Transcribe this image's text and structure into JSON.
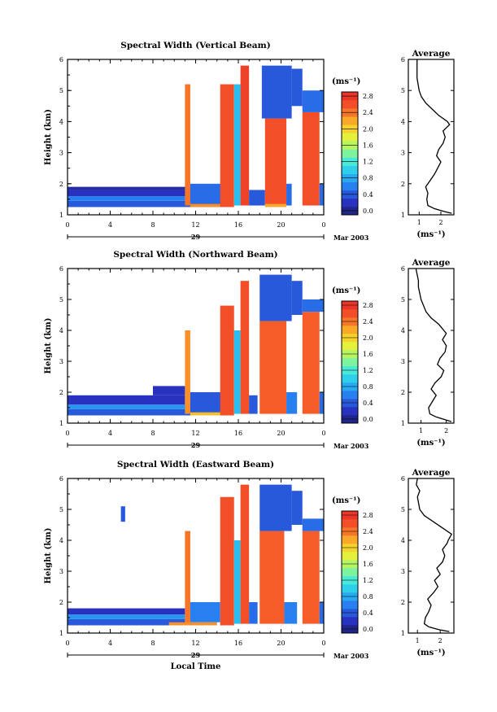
{
  "chart_data": [
    {
      "type": "heatmap",
      "title": "Spectral Width (Vertical Beam)",
      "ylabel": "Height (km)",
      "xlabel": "",
      "ylim": [
        1,
        6
      ],
      "xlim": [
        0,
        24
      ],
      "y_ticks": [
        "1",
        "2",
        "3",
        "4",
        "5",
        "6"
      ],
      "x_ticks": [
        "0",
        "4",
        "8",
        "12",
        "16",
        "20",
        "0"
      ],
      "date_day": "29",
      "date_month": "Mar 2003",
      "colorbar": {
        "label": "(ms⁻¹)",
        "ticks": [
          "0.0",
          "0.4",
          "0.8",
          "1.2",
          "1.6",
          "2.0",
          "2.4",
          "2.8"
        ],
        "range": [
          0,
          3.0
        ]
      },
      "cells": [
        {
          "t0": 0.0,
          "t1": 11.5,
          "h0": 1.25,
          "h1": 1.45,
          "v": 0.5
        },
        {
          "t0": 0.0,
          "t1": 11.5,
          "h0": 1.45,
          "h1": 1.6,
          "v": 0.7
        },
        {
          "t0": 0.0,
          "t1": 11.5,
          "h0": 1.6,
          "h1": 1.8,
          "v": 0.3
        },
        {
          "t0": 0.0,
          "t1": 11.5,
          "h0": 1.8,
          "h1": 1.9,
          "v": 0.2
        },
        {
          "t0": 11.0,
          "t1": 11.5,
          "h0": 1.3,
          "h1": 5.2,
          "v": 2.5
        },
        {
          "t0": 11.5,
          "t1": 14.5,
          "h0": 1.25,
          "h1": 2.0,
          "v": 0.6
        },
        {
          "t0": 11.5,
          "t1": 14.5,
          "h0": 1.25,
          "h1": 1.35,
          "v": 2.4
        },
        {
          "t0": 14.3,
          "t1": 15.6,
          "h0": 1.25,
          "h1": 5.2,
          "v": 2.7
        },
        {
          "t0": 15.6,
          "t1": 16.2,
          "h0": 1.3,
          "h1": 5.2,
          "v": 1.0
        },
        {
          "t0": 16.2,
          "t1": 17.0,
          "h0": 1.3,
          "h1": 5.8,
          "v": 2.8
        },
        {
          "t0": 17.0,
          "t1": 18.5,
          "h0": 1.3,
          "h1": 1.8,
          "v": 0.5
        },
        {
          "t0": 18.5,
          "t1": 20.5,
          "h0": 1.3,
          "h1": 4.1,
          "v": 2.7
        },
        {
          "t0": 18.5,
          "t1": 20.5,
          "h0": 1.25,
          "h1": 1.35,
          "v": 2.3
        },
        {
          "t0": 18.2,
          "t1": 21.0,
          "h0": 4.1,
          "h1": 5.8,
          "v": 0.5
        },
        {
          "t0": 20.5,
          "t1": 21.0,
          "h0": 1.3,
          "h1": 2.0,
          "v": 0.6
        },
        {
          "t0": 21.0,
          "t1": 22.0,
          "h0": 4.5,
          "h1": 5.7,
          "v": 0.5
        },
        {
          "t0": 22.0,
          "t1": 23.6,
          "h0": 1.3,
          "h1": 4.3,
          "v": 2.7
        },
        {
          "t0": 22.0,
          "t1": 24.0,
          "h0": 4.3,
          "h1": 5.0,
          "v": 0.6
        },
        {
          "t0": 23.6,
          "t1": 24.0,
          "h0": 1.3,
          "h1": 2.0,
          "v": 0.6
        }
      ],
      "average": {
        "title": "Average",
        "xlabel": "(ms⁻¹)",
        "x_ticks": [
          "1",
          "2"
        ],
        "xlim": [
          0.5,
          2.6
        ],
        "ylim": [
          1,
          6
        ],
        "y_ticks": [
          "1",
          "2",
          "3",
          "4",
          "5",
          "6"
        ],
        "height": [
          1.05,
          1.1,
          1.2,
          1.3,
          1.5,
          1.7,
          1.9,
          2.1,
          2.3,
          2.5,
          2.7,
          2.9,
          3.1,
          3.3,
          3.5,
          3.7,
          3.9,
          4.0,
          4.2,
          4.4,
          4.6,
          4.8,
          5.0,
          5.2,
          5.4,
          5.6,
          5.8,
          6.0
        ],
        "values": [
          2.5,
          2.2,
          1.7,
          1.4,
          1.35,
          1.4,
          1.3,
          1.5,
          1.7,
          1.85,
          2.0,
          1.8,
          1.9,
          2.1,
          2.2,
          2.1,
          2.4,
          2.3,
          1.9,
          1.6,
          1.3,
          1.1,
          1.0,
          0.95,
          0.9,
          0.9,
          0.9,
          0.9
        ]
      }
    },
    {
      "type": "heatmap",
      "title": "Spectral Width (Northward Beam)",
      "ylabel": "Height (km)",
      "xlabel": "",
      "ylim": [
        1,
        6
      ],
      "xlim": [
        0,
        24
      ],
      "y_ticks": [
        "1",
        "2",
        "3",
        "4",
        "5",
        "6"
      ],
      "x_ticks": [
        "0",
        "4",
        "8",
        "12",
        "16",
        "20",
        "0"
      ],
      "date_day": "29",
      "date_month": "Mar 2003",
      "colorbar": {
        "label": "(ms⁻¹)",
        "ticks": [
          "0.0",
          "0.4",
          "0.8",
          "1.2",
          "1.6",
          "2.0",
          "2.4",
          "2.8"
        ],
        "range": [
          0,
          3.0
        ]
      },
      "cells": [
        {
          "t0": 0.0,
          "t1": 11.5,
          "h0": 1.25,
          "h1": 1.45,
          "v": 0.5
        },
        {
          "t0": 0.0,
          "t1": 11.5,
          "h0": 1.45,
          "h1": 1.6,
          "v": 0.8
        },
        {
          "t0": 0.0,
          "t1": 11.0,
          "h0": 1.6,
          "h1": 1.9,
          "v": 0.3
        },
        {
          "t0": 8.0,
          "t1": 11.0,
          "h0": 1.9,
          "h1": 2.2,
          "v": 0.3
        },
        {
          "t0": 11.0,
          "t1": 11.5,
          "h0": 1.3,
          "h1": 4.0,
          "v": 2.4
        },
        {
          "t0": 11.5,
          "t1": 14.5,
          "h0": 1.3,
          "h1": 2.0,
          "v": 0.5
        },
        {
          "t0": 11.5,
          "t1": 14.5,
          "h0": 1.25,
          "h1": 1.35,
          "v": 2.2
        },
        {
          "t0": 14.3,
          "t1": 15.6,
          "h0": 1.25,
          "h1": 4.8,
          "v": 2.7
        },
        {
          "t0": 15.6,
          "t1": 16.2,
          "h0": 1.3,
          "h1": 4.0,
          "v": 1.0
        },
        {
          "t0": 16.2,
          "t1": 17.0,
          "h0": 1.3,
          "h1": 5.6,
          "v": 2.7
        },
        {
          "t0": 17.0,
          "t1": 17.8,
          "h0": 1.3,
          "h1": 1.9,
          "v": 0.5
        },
        {
          "t0": 18.0,
          "t1": 20.5,
          "h0": 1.3,
          "h1": 4.3,
          "v": 2.6
        },
        {
          "t0": 18.0,
          "t1": 21.0,
          "h0": 4.3,
          "h1": 5.8,
          "v": 0.5
        },
        {
          "t0": 20.5,
          "t1": 21.5,
          "h0": 1.3,
          "h1": 2.0,
          "v": 0.7
        },
        {
          "t0": 21.0,
          "t1": 22.0,
          "h0": 4.5,
          "h1": 5.6,
          "v": 0.5
        },
        {
          "t0": 22.0,
          "t1": 23.6,
          "h0": 1.3,
          "h1": 4.6,
          "v": 2.6
        },
        {
          "t0": 22.0,
          "t1": 24.0,
          "h0": 4.6,
          "h1": 5.0,
          "v": 0.6
        },
        {
          "t0": 23.6,
          "t1": 24.0,
          "h0": 1.3,
          "h1": 2.0,
          "v": 0.6
        }
      ],
      "average": {
        "title": "Average",
        "xlabel": "(ms⁻¹)",
        "x_ticks": [
          "1",
          "2"
        ],
        "xlim": [
          0.5,
          2.3
        ],
        "ylim": [
          1,
          6
        ],
        "y_ticks": [
          "1",
          "2",
          "3",
          "4",
          "5",
          "6"
        ],
        "height": [
          1.05,
          1.1,
          1.2,
          1.3,
          1.5,
          1.7,
          1.9,
          2.1,
          2.3,
          2.5,
          2.7,
          2.9,
          3.1,
          3.3,
          3.5,
          3.7,
          3.9,
          4.0,
          4.2,
          4.4,
          4.6,
          4.8,
          5.0,
          5.2,
          5.4,
          5.6,
          5.8,
          6.0
        ],
        "values": [
          2.2,
          2.0,
          1.6,
          1.35,
          1.3,
          1.45,
          1.6,
          1.4,
          1.55,
          1.8,
          1.9,
          1.65,
          1.75,
          1.95,
          2.0,
          1.85,
          2.0,
          1.9,
          1.7,
          1.4,
          1.2,
          1.1,
          1.0,
          0.95,
          0.9,
          0.9,
          0.85,
          0.8
        ]
      }
    },
    {
      "type": "heatmap",
      "title": "Spectral Width (Eastward Beam)",
      "ylabel": "Height (km)",
      "xlabel": "Local Time",
      "ylim": [
        1,
        6
      ],
      "xlim": [
        0,
        24
      ],
      "y_ticks": [
        "1",
        "2",
        "3",
        "4",
        "5",
        "6"
      ],
      "x_ticks": [
        "0",
        "4",
        "8",
        "12",
        "16",
        "20",
        "0"
      ],
      "date_day": "29",
      "date_month": "Mar 2003",
      "colorbar": {
        "label": "(ms⁻¹)",
        "ticks": [
          "0.0",
          "0.4",
          "0.8",
          "1.2",
          "1.6",
          "2.0",
          "2.4",
          "2.8"
        ],
        "range": [
          0,
          3.0
        ]
      },
      "cells": [
        {
          "t0": 0.0,
          "t1": 11.0,
          "h0": 1.25,
          "h1": 1.45,
          "v": 0.5
        },
        {
          "t0": 0.0,
          "t1": 11.0,
          "h0": 1.45,
          "h1": 1.6,
          "v": 0.8
        },
        {
          "t0": 0.0,
          "t1": 11.0,
          "h0": 1.6,
          "h1": 1.8,
          "v": 0.3
        },
        {
          "t0": 5.0,
          "t1": 5.4,
          "h0": 4.6,
          "h1": 5.1,
          "v": 0.5
        },
        {
          "t0": 11.0,
          "t1": 11.5,
          "h0": 1.3,
          "h1": 4.3,
          "v": 2.5
        },
        {
          "t0": 9.5,
          "t1": 14.0,
          "h0": 1.25,
          "h1": 1.35,
          "v": 2.4
        },
        {
          "t0": 11.5,
          "t1": 14.3,
          "h0": 1.35,
          "h1": 2.0,
          "v": 0.7
        },
        {
          "t0": 14.3,
          "t1": 15.6,
          "h0": 1.25,
          "h1": 5.4,
          "v": 2.7
        },
        {
          "t0": 15.6,
          "t1": 16.2,
          "h0": 1.3,
          "h1": 4.0,
          "v": 1.0
        },
        {
          "t0": 16.2,
          "t1": 17.0,
          "h0": 1.3,
          "h1": 5.8,
          "v": 2.7
        },
        {
          "t0": 17.0,
          "t1": 17.8,
          "h0": 1.3,
          "h1": 2.0,
          "v": 0.6
        },
        {
          "t0": 18.0,
          "t1": 20.3,
          "h0": 1.3,
          "h1": 4.3,
          "v": 2.6
        },
        {
          "t0": 18.0,
          "t1": 21.0,
          "h0": 4.3,
          "h1": 5.8,
          "v": 0.5
        },
        {
          "t0": 20.3,
          "t1": 21.5,
          "h0": 1.3,
          "h1": 2.0,
          "v": 0.7
        },
        {
          "t0": 21.0,
          "t1": 22.0,
          "h0": 4.5,
          "h1": 5.6,
          "v": 0.5
        },
        {
          "t0": 22.0,
          "t1": 23.6,
          "h0": 1.3,
          "h1": 4.3,
          "v": 2.6
        },
        {
          "t0": 22.0,
          "t1": 24.0,
          "h0": 4.3,
          "h1": 4.7,
          "v": 0.6
        },
        {
          "t0": 23.6,
          "t1": 24.0,
          "h0": 1.3,
          "h1": 2.0,
          "v": 0.6
        }
      ],
      "average": {
        "title": "Average",
        "xlabel": "(ms⁻¹)",
        "x_ticks": [
          "1",
          "2"
        ],
        "xlim": [
          0.6,
          2.6
        ],
        "ylim": [
          1,
          6
        ],
        "y_ticks": [
          "1",
          "2",
          "3",
          "4",
          "5",
          "6"
        ],
        "height": [
          1.05,
          1.1,
          1.2,
          1.3,
          1.5,
          1.7,
          1.9,
          2.1,
          2.3,
          2.5,
          2.7,
          2.9,
          3.1,
          3.3,
          3.5,
          3.7,
          3.9,
          4.0,
          4.2,
          4.4,
          4.6,
          4.8,
          5.0,
          5.2,
          5.4,
          5.6,
          5.8,
          6.0
        ],
        "values": [
          2.4,
          2.0,
          1.5,
          1.3,
          1.35,
          1.5,
          1.6,
          1.45,
          1.7,
          1.9,
          1.75,
          2.0,
          1.85,
          2.1,
          2.2,
          2.1,
          2.3,
          2.35,
          2.5,
          2.1,
          1.7,
          1.3,
          1.1,
          1.05,
          1.0,
          1.1,
          0.95,
          1.0
        ]
      }
    }
  ]
}
